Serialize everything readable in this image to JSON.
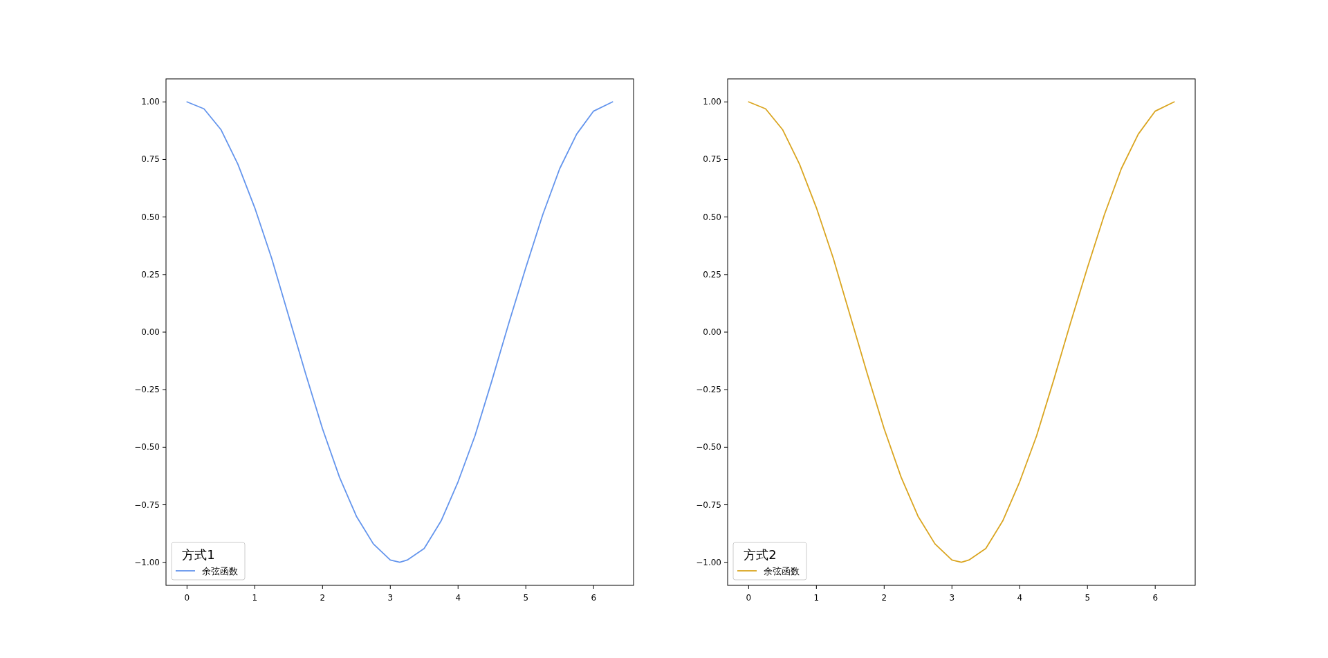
{
  "chart_data": [
    {
      "type": "line",
      "legend_title": "方式1",
      "legend": "bottom left",
      "xlim": [
        -0.31,
        6.59
      ],
      "ylim": [
        -1.1,
        1.1
      ],
      "xticks": [
        0,
        1,
        2,
        3,
        4,
        5,
        6
      ],
      "yticks": [
        {
          "value": -1,
          "label": "−1.00"
        },
        {
          "value": -0.75,
          "label": "−0.75"
        },
        {
          "value": -0.5,
          "label": "−0.50"
        },
        {
          "value": -0.25,
          "label": "−0.25"
        },
        {
          "value": 0,
          "label": "0.00"
        },
        {
          "value": 0.25,
          "label": "0.25"
        },
        {
          "value": 0.5,
          "label": "0.50"
        },
        {
          "value": 0.75,
          "label": "0.75"
        },
        {
          "value": 1,
          "label": "1.00"
        }
      ],
      "x": [
        0,
        0.25,
        0.5,
        0.75,
        1,
        1.25,
        1.5,
        1.75,
        2,
        2.25,
        2.5,
        2.75,
        3,
        3.14,
        3.25,
        3.5,
        3.75,
        4,
        4.25,
        4.5,
        4.75,
        5,
        5.25,
        5.5,
        5.75,
        6,
        6.28
      ],
      "series": [
        {
          "name": "余弦函数",
          "color": "#6495ed",
          "values": [
            1.0,
            0.97,
            0.88,
            0.73,
            0.54,
            0.32,
            0.07,
            -0.18,
            -0.42,
            -0.63,
            -0.8,
            -0.92,
            -0.99,
            -1.0,
            -0.99,
            -0.94,
            -0.82,
            -0.65,
            -0.45,
            -0.21,
            0.04,
            0.28,
            0.51,
            0.71,
            0.86,
            0.96,
            1.0
          ]
        }
      ]
    },
    {
      "type": "line",
      "legend_title": "方式2",
      "legend": "bottom left",
      "xlim": [
        -0.31,
        6.59
      ],
      "ylim": [
        -1.1,
        1.1
      ],
      "xticks": [
        0,
        1,
        2,
        3,
        4,
        5,
        6
      ],
      "yticks": [
        {
          "value": -1,
          "label": "−1.00"
        },
        {
          "value": -0.75,
          "label": "−0.75"
        },
        {
          "value": -0.5,
          "label": "−0.50"
        },
        {
          "value": -0.25,
          "label": "−0.25"
        },
        {
          "value": 0,
          "label": "0.00"
        },
        {
          "value": 0.25,
          "label": "0.25"
        },
        {
          "value": 0.5,
          "label": "0.50"
        },
        {
          "value": 0.75,
          "label": "0.75"
        },
        {
          "value": 1,
          "label": "1.00"
        }
      ],
      "x": [
        0,
        0.25,
        0.5,
        0.75,
        1,
        1.25,
        1.5,
        1.75,
        2,
        2.25,
        2.5,
        2.75,
        3,
        3.14,
        3.25,
        3.5,
        3.75,
        4,
        4.25,
        4.5,
        4.75,
        5,
        5.25,
        5.5,
        5.75,
        6,
        6.28
      ],
      "series": [
        {
          "name": "余弦函数",
          "color": "#daa520",
          "values": [
            1.0,
            0.97,
            0.88,
            0.73,
            0.54,
            0.32,
            0.07,
            -0.18,
            -0.42,
            -0.63,
            -0.8,
            -0.92,
            -0.99,
            -1.0,
            -0.99,
            -0.94,
            -0.82,
            -0.65,
            -0.45,
            -0.21,
            0.04,
            0.28,
            0.51,
            0.71,
            0.86,
            0.96,
            1.0
          ]
        }
      ]
    }
  ]
}
